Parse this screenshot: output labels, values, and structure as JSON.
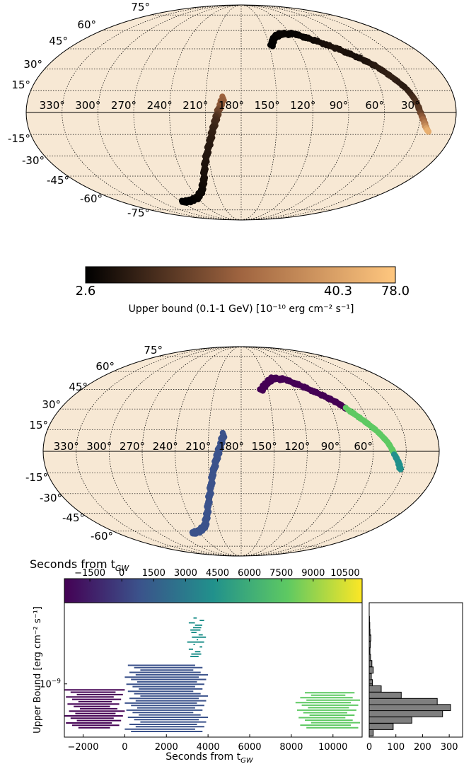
{
  "colors": {
    "map_fill": "#f7e8d4",
    "copper_dark": "#000000",
    "copper_light": "#ffc77f",
    "viridis_1": "#440154",
    "viridis_2": "#3b528b",
    "viridis_3": "#21918c",
    "viridis_4": "#5ec962",
    "viridis_5": "#fde725",
    "hist_fill": "#7f7f7f"
  },
  "chart_data": [
    {
      "type": "scatter",
      "projection": "mollweide",
      "grid": true,
      "lat_labels": [
        "75°",
        "60°",
        "45°",
        "30°",
        "15°",
        "-15°",
        "-30°",
        "-45°",
        "-60°",
        "-75°"
      ],
      "lon_labels": [
        "330°",
        "300°",
        "270°",
        "240°",
        "210°",
        "180°",
        "150°",
        "120°",
        "90°",
        "60°",
        "30°"
      ],
      "bands": [
        {
          "name": "north",
          "points": [
            [
              148,
              47
            ],
            [
              142,
              54
            ],
            [
              132,
              57
            ],
            [
              115,
              57
            ],
            [
              98,
              52
            ],
            [
              80,
              45
            ],
            [
              65,
              38
            ],
            [
              55,
              32
            ],
            [
              46,
              24
            ],
            [
              38,
              16
            ],
            [
              33,
              8
            ],
            [
              30,
              0
            ],
            [
              27,
              -5
            ],
            [
              24,
              -10
            ],
            [
              21,
              -13
            ]
          ],
          "values": [
            2.6,
            3.5,
            5,
            4,
            6,
            10,
            8,
            12,
            15,
            12,
            20,
            25,
            40,
            55,
            70
          ]
        },
        {
          "name": "south",
          "points": [
            [
              195,
              10
            ],
            [
              198,
              4
            ],
            [
              201,
              -4
            ],
            [
              204,
              -12
            ],
            [
              208,
              -22
            ],
            [
              214,
              -35
            ],
            [
              220,
              -48
            ],
            [
              228,
              -57
            ],
            [
              240,
              -63
            ],
            [
              256,
              -66
            ],
            [
              270,
              -67
            ]
          ],
          "values": [
            40,
            35,
            20,
            15,
            12,
            10,
            8,
            6,
            5,
            3,
            2.6
          ]
        }
      ]
    },
    {
      "type": "heatmap",
      "colorbar": true,
      "cmap": "copper",
      "ticks": [
        "2.6",
        "40.3",
        "78.0"
      ],
      "range": [
        2.6,
        78.0
      ],
      "label": "Upper bound (0.1-1 GeV) [10⁻¹⁰ erg cm⁻² s⁻¹]"
    },
    {
      "type": "scatter",
      "projection": "mollweide",
      "grid": true,
      "lat_labels": [
        "75°",
        "60°",
        "45°",
        "30°",
        "15°",
        "-15°",
        "-30°",
        "-45°",
        "-60°"
      ],
      "lon_labels": [
        "330°",
        "300°",
        "270°",
        "240°",
        "210°",
        "180°",
        "150°",
        "120°",
        "90°",
        "60°"
      ],
      "bands": [
        {
          "name": "purple",
          "points": [
            [
              158,
              44
            ],
            [
              150,
              50
            ],
            [
              140,
              54
            ],
            [
              125,
              53
            ],
            [
              108,
              47
            ],
            [
              92,
              40
            ],
            [
              82,
              35
            ],
            [
              75,
              30
            ]
          ],
          "color": "#440154"
        },
        {
          "name": "green",
          "points": [
            [
              75,
              30
            ],
            [
              64,
              22
            ],
            [
              54,
              14
            ],
            [
              46,
              6
            ],
            [
              40,
              -3
            ]
          ],
          "color": "#5ec962"
        },
        {
          "name": "teal",
          "points": [
            [
              40,
              -3
            ],
            [
              36,
              -8
            ],
            [
              33,
              -13
            ]
          ],
          "color": "#21918c"
        },
        {
          "name": "blue",
          "points": [
            [
              196,
              12
            ],
            [
              199,
              4
            ],
            [
              202,
              -4
            ],
            [
              206,
              -15
            ],
            [
              211,
              -30
            ],
            [
              218,
              -45
            ],
            [
              226,
              -55
            ],
            [
              238,
              -60
            ],
            [
              252,
              -62
            ]
          ],
          "color": "#3b528b"
        }
      ]
    },
    {
      "type": "heatmap",
      "colorbar": true,
      "cmap": "viridis",
      "title": "Seconds from t",
      "title_sub": "GW",
      "ticks": [
        "−1500",
        "0",
        "1500",
        "3000",
        "4500",
        "6000",
        "7500",
        "9000",
        "10500"
      ],
      "tick_values": [
        -1500,
        0,
        1500,
        3000,
        4500,
        6000,
        7500,
        9000,
        10500
      ],
      "range": [
        -2700,
        11300
      ]
    },
    {
      "type": "bar",
      "orientation": "horizontal-segments",
      "xlabel": "Seconds from t",
      "xlabel_sub": "GW",
      "ylabel": "Upper Bound [erg cm⁻² s⁻¹]",
      "xlim": [
        -2900,
        11400
      ],
      "xticks": [
        "−2000",
        "0",
        "2000",
        "4000",
        "6000",
        "8000",
        "10000"
      ],
      "xtick_values": [
        -2000,
        0,
        2000,
        4000,
        6000,
        8000,
        10000
      ],
      "yscale": "log",
      "ylim": [
        2.6e-10,
        7.8e-09
      ],
      "ytick_label": "10",
      "ytick_sup": "−9",
      "ytick_value": 1e-09,
      "groups": [
        {
          "x_start": -2900,
          "x_end": 0,
          "y_min": 3.3e-10,
          "y_max": 8.6e-10,
          "color": "#440154"
        },
        {
          "x_start": 0,
          "x_end": 4000,
          "y_min": 3e-10,
          "y_max": 1.6e-09,
          "color": "#3b528b"
        },
        {
          "x_start": 3000,
          "x_end": 3900,
          "y_min": 2e-09,
          "y_max": 5.3e-09,
          "color": "#21918c"
        },
        {
          "x_start": 8200,
          "x_end": 11300,
          "y_min": 3.3e-10,
          "y_max": 8e-10,
          "color": "#5ec962"
        }
      ]
    },
    {
      "type": "bar",
      "orientation": "horizontal",
      "xticks": [
        "0",
        "100",
        "200",
        "300"
      ],
      "xtick_values": [
        0,
        100,
        200,
        300
      ],
      "xlim": [
        0,
        350
      ],
      "yscale": "log",
      "ylim": [
        2.6e-10,
        7.8e-09
      ],
      "bins": [
        {
          "y": 2.9e-10,
          "count": 15
        },
        {
          "y": 3.4e-10,
          "count": 90
        },
        {
          "y": 4e-10,
          "count": 160
        },
        {
          "y": 4.7e-10,
          "count": 275
        },
        {
          "y": 5.5e-10,
          "count": 305
        },
        {
          "y": 6.4e-10,
          "count": 255
        },
        {
          "y": 7.5e-10,
          "count": 120
        },
        {
          "y": 8.8e-10,
          "count": 45
        },
        {
          "y": 1.03e-09,
          "count": 12
        },
        {
          "y": 1.2e-09,
          "count": 8
        },
        {
          "y": 1.42e-09,
          "count": 15
        },
        {
          "y": 1.67e-09,
          "count": 10
        },
        {
          "y": 1.95e-09,
          "count": 5
        },
        {
          "y": 2.3e-09,
          "count": 3
        },
        {
          "y": 2.7e-09,
          "count": 4
        },
        {
          "y": 3.2e-09,
          "count": 6
        },
        {
          "y": 3.7e-09,
          "count": 3
        },
        {
          "y": 4.4e-09,
          "count": 2
        },
        {
          "y": 5.1e-09,
          "count": 1
        }
      ]
    }
  ]
}
